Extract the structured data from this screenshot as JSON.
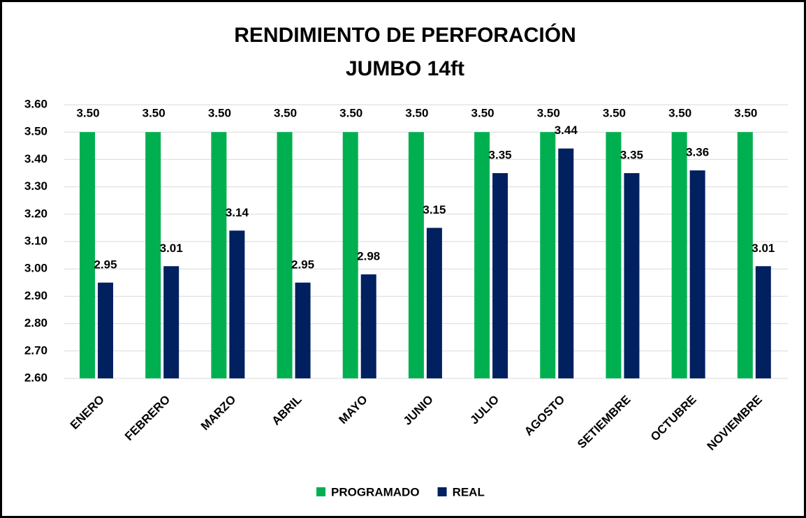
{
  "chart_data": {
    "type": "bar",
    "title": "RENDIMIENTO DE PERFORACIÓN",
    "subtitle": "JUMBO 14ft",
    "categories": [
      "ENERO",
      "FEBRERO",
      "MARZO",
      "ABRIL",
      "MAYO",
      "JUNIO",
      "JULIO",
      "AGOSTO",
      "SETIEMBRE",
      "OCTUBRE",
      "NOVIEMBRE"
    ],
    "series": [
      {
        "name": "PROGRAMADO",
        "color": "#00b050",
        "values": [
          3.5,
          3.5,
          3.5,
          3.5,
          3.5,
          3.5,
          3.5,
          3.5,
          3.5,
          3.5,
          3.5
        ],
        "value_labels": [
          "3.50",
          "3.50",
          "3.50",
          "3.50",
          "3.50",
          "3.50",
          "3.50",
          "3.50",
          "3.50",
          "3.50",
          "3.50"
        ]
      },
      {
        "name": "REAL",
        "color": "#002060",
        "values": [
          2.95,
          3.01,
          3.14,
          2.95,
          2.98,
          3.15,
          3.35,
          3.44,
          3.35,
          3.36,
          3.01
        ],
        "value_labels": [
          "2.95",
          "3.01",
          "3.14",
          "2.95",
          "2.98",
          "3.15",
          "3.35",
          "3.44",
          "3.35",
          "3.36",
          "3.01"
        ]
      }
    ],
    "ylim": [
      2.6,
      3.6
    ],
    "yticks": [
      {
        "value": 2.6,
        "label": "2.60"
      },
      {
        "value": 2.7,
        "label": "2.70"
      },
      {
        "value": 2.8,
        "label": "2.80"
      },
      {
        "value": 2.9,
        "label": "2.90"
      },
      {
        "value": 3.0,
        "label": "3.00"
      },
      {
        "value": 3.1,
        "label": "3.10"
      },
      {
        "value": 3.2,
        "label": "3.20"
      },
      {
        "value": 3.3,
        "label": "3.30"
      },
      {
        "value": 3.4,
        "label": "3.40"
      },
      {
        "value": 3.5,
        "label": "3.50"
      },
      {
        "value": 3.6,
        "label": "3.60"
      }
    ],
    "grid": true,
    "legend": "bottom"
  }
}
